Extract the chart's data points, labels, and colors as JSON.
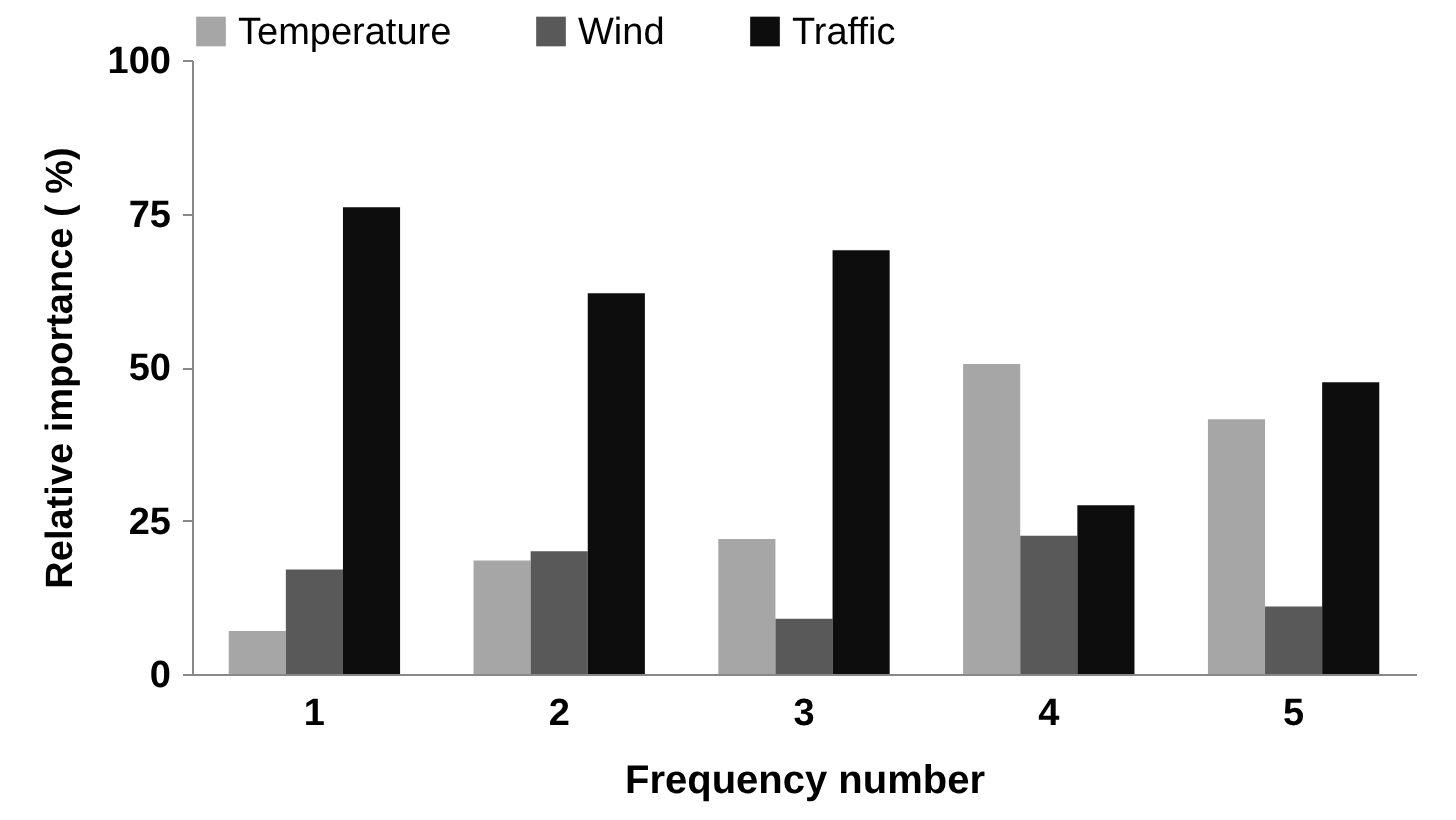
{
  "chart_data": {
    "type": "bar",
    "xlabel": "Frequency number",
    "ylabel": "Relative importance ( %)",
    "categories": [
      "1",
      "2",
      "3",
      "4",
      "5"
    ],
    "series": [
      {
        "name": "Temperature",
        "color": "#a6a6a6",
        "values": [
          7,
          18.5,
          22,
          50.5,
          41.5
        ]
      },
      {
        "name": "Wind",
        "color": "#595959",
        "values": [
          17,
          20,
          9,
          22.5,
          11
        ]
      },
      {
        "name": "Traffic",
        "color": "#0d0d0d",
        "values": [
          76,
          62,
          69,
          27.5,
          47.5
        ]
      }
    ],
    "ylim": [
      0,
      100
    ],
    "yticks": [
      0,
      25,
      50,
      75,
      100
    ],
    "grid": false,
    "legend": "top"
  }
}
